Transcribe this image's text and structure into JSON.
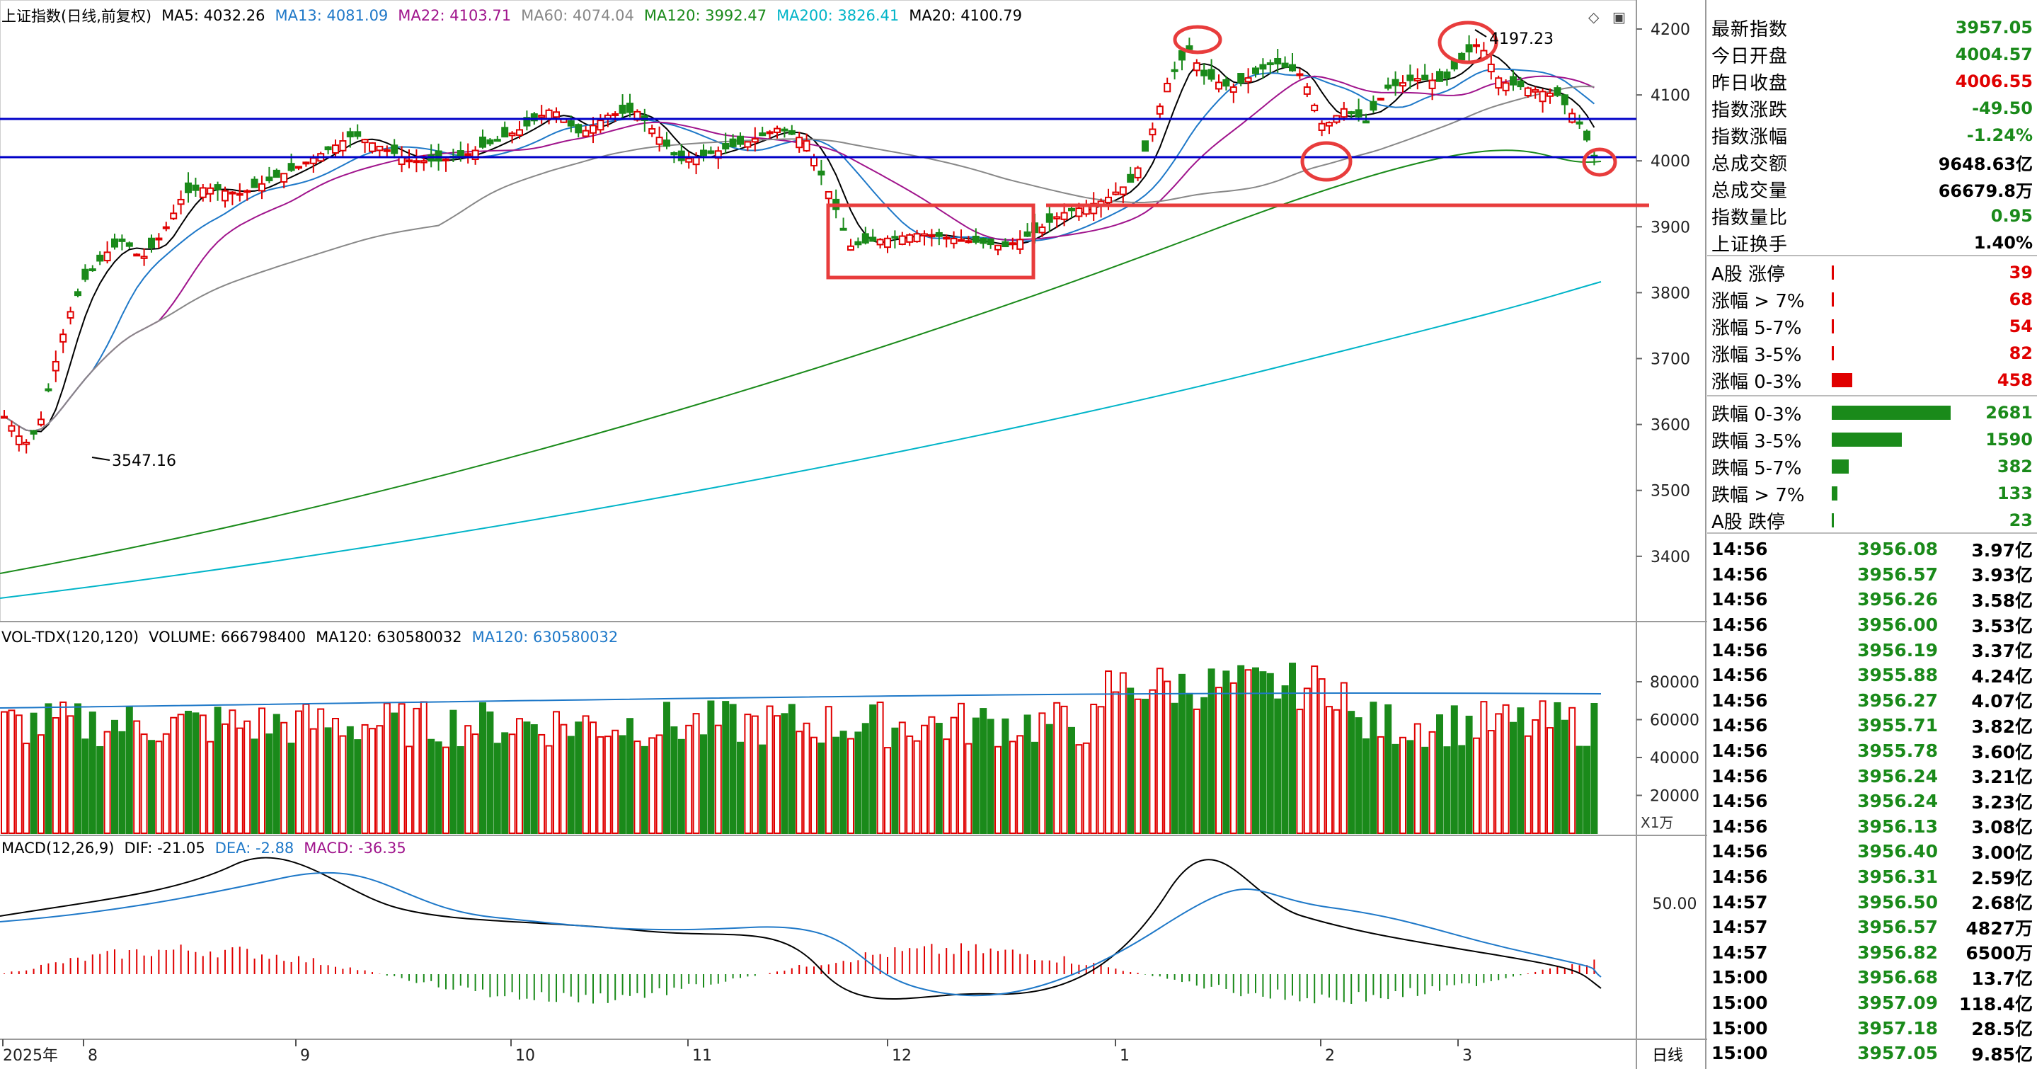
{
  "chart_header": {
    "title": "上证指数(日线,前复权)",
    "ma_items": [
      {
        "label": "MA5: 4032.26",
        "color": "#000000"
      },
      {
        "label": "MA13: 4081.09",
        "color": "#1e78c8"
      },
      {
        "label": "MA22: 4103.71",
        "color": "#a0148c"
      },
      {
        "label": "MA60: 4074.04",
        "color": "#888888"
      },
      {
        "label": "MA120: 3992.47",
        "color": "#1a8a1a"
      },
      {
        "label": "MA200: 3826.41",
        "color": "#00b4c8"
      },
      {
        "label": "MA20: 4100.79",
        "color": "#000000"
      }
    ]
  },
  "price_axis": [
    "4200",
    "4100",
    "4000",
    "3900",
    "3800",
    "3700",
    "3600",
    "3500",
    "3400"
  ],
  "annotations": {
    "high_label": "4197.23",
    "low_label": "3547.16"
  },
  "volume_header": {
    "items": [
      {
        "label": "VOL-TDX(120,120)",
        "color": "#000000"
      },
      {
        "label": "VOLUME: 666798400",
        "color": "#000000"
      },
      {
        "label": "MA120: 630580032",
        "color": "#000000"
      },
      {
        "label": "MA120: 630580032",
        "color": "#1e78c8"
      }
    ]
  },
  "volume_axis": [
    "80000",
    "60000",
    "40000",
    "20000"
  ],
  "volume_unit": "X1万",
  "macd_header": {
    "items": [
      {
        "label": "MACD(12,26,9)",
        "color": "#000000"
      },
      {
        "label": "DIF: -21.05",
        "color": "#000000"
      },
      {
        "label": "DEA: -2.88",
        "color": "#1e78c8"
      },
      {
        "label": "MACD: -36.35",
        "color": "#a0148c"
      }
    ]
  },
  "macd_axis": [
    "50.00"
  ],
  "date_axis": {
    "items": [
      "2025年",
      "8",
      "9",
      "10",
      "11",
      "12",
      "1",
      "2",
      "3"
    ],
    "period_button": "日线"
  },
  "stats": [
    {
      "label": "最新指数",
      "value": "3957.05",
      "color": "#1a8a1a"
    },
    {
      "label": "今日开盘",
      "value": "4004.57",
      "color": "#1a8a1a"
    },
    {
      "label": "昨日收盘",
      "value": "4006.55",
      "color": "#e00000"
    },
    {
      "label": "指数涨跌",
      "value": "-49.50",
      "color": "#1a8a1a"
    },
    {
      "label": "指数涨幅",
      "value": "-1.24%",
      "color": "#1a8a1a"
    },
    {
      "label": "总成交额",
      "value": "9648.63亿",
      "color": "#000000"
    },
    {
      "label": "总成交量",
      "value": "66679.8万",
      "color": "#000000"
    },
    {
      "label": "指数量比",
      "value": "0.95",
      "color": "#1a8a1a"
    },
    {
      "label": "上证换手",
      "value": "1.40%",
      "color": "#000000"
    }
  ],
  "breadth": [
    {
      "label": "A股 涨停",
      "value": "39",
      "color": "#e00000",
      "fraction": 0.01
    },
    {
      "label": "涨幅 > 7%",
      "value": "68",
      "color": "#e00000",
      "fraction": 0.02
    },
    {
      "label": "涨幅 5-7%",
      "value": "54",
      "color": "#e00000",
      "fraction": 0.01
    },
    {
      "label": "涨幅 3-5%",
      "value": "82",
      "color": "#e00000",
      "fraction": 0.02
    },
    {
      "label": "涨幅 0-3%",
      "value": "458",
      "color": "#e00000",
      "fraction": 0.17
    },
    {
      "label": "跌幅 0-3%",
      "value": "2681",
      "color": "#1a8a1a",
      "fraction": 1.0
    },
    {
      "label": "跌幅 3-5%",
      "value": "1590",
      "color": "#1a8a1a",
      "fraction": 0.59
    },
    {
      "label": "跌幅 5-7%",
      "value": "382",
      "color": "#1a8a1a",
      "fraction": 0.14
    },
    {
      "label": "跌幅 > 7%",
      "value": "133",
      "color": "#1a8a1a",
      "fraction": 0.05
    },
    {
      "label": "A股 跌停",
      "value": "23",
      "color": "#1a8a1a",
      "fraction": 0.01
    }
  ],
  "ticks": [
    {
      "time": "14:56",
      "price": "3956.08",
      "amount": "3.97亿"
    },
    {
      "time": "14:56",
      "price": "3956.57",
      "amount": "3.93亿"
    },
    {
      "time": "14:56",
      "price": "3956.26",
      "amount": "3.58亿"
    },
    {
      "time": "14:56",
      "price": "3956.00",
      "amount": "3.53亿"
    },
    {
      "time": "14:56",
      "price": "3956.19",
      "amount": "3.37亿"
    },
    {
      "time": "14:56",
      "price": "3955.88",
      "amount": "4.24亿"
    },
    {
      "time": "14:56",
      "price": "3956.27",
      "amount": "4.07亿"
    },
    {
      "time": "14:56",
      "price": "3955.71",
      "amount": "3.82亿"
    },
    {
      "time": "14:56",
      "price": "3955.78",
      "amount": "3.60亿"
    },
    {
      "time": "14:56",
      "price": "3956.24",
      "amount": "3.21亿"
    },
    {
      "time": "14:56",
      "price": "3956.24",
      "amount": "3.23亿"
    },
    {
      "time": "14:56",
      "price": "3956.13",
      "amount": "3.08亿"
    },
    {
      "time": "14:56",
      "price": "3956.40",
      "amount": "3.00亿"
    },
    {
      "time": "14:56",
      "price": "3956.31",
      "amount": "2.59亿"
    },
    {
      "time": "14:57",
      "price": "3956.50",
      "amount": "2.68亿"
    },
    {
      "time": "14:57",
      "price": "3956.57",
      "amount": "4827万"
    },
    {
      "time": "14:57",
      "price": "3956.82",
      "amount": "6500万"
    },
    {
      "time": "15:00",
      "price": "3956.68",
      "amount": "13.7亿"
    },
    {
      "time": "15:00",
      "price": "3957.09",
      "amount": "118.4亿"
    },
    {
      "time": "15:00",
      "price": "3957.18",
      "amount": "28.5亿"
    },
    {
      "time": "15:00",
      "price": "3957.05",
      "amount": "9.85亿"
    }
  ],
  "colors": {
    "up": "#e00000",
    "down": "#1a8a1a",
    "support_line": "#0000c8",
    "annotation": "#e83c3c"
  }
}
